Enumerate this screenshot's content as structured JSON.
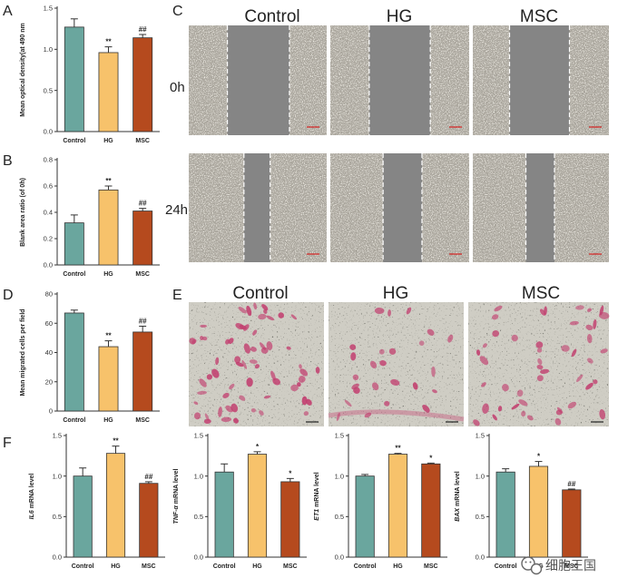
{
  "colors": {
    "Control": "#6aa69e",
    "HG": "#f7c26b",
    "MSC": "#b54a1e",
    "bar_edge": "#333333",
    "scratch_field": "#858585",
    "transwell_bg": "#cfcdc4",
    "stain": "#c23d6e"
  },
  "panels": {
    "A": "A",
    "B": "B",
    "C": "C",
    "D": "D",
    "E": "E",
    "F": "F"
  },
  "scratch": {
    "columns": [
      "Control",
      "HG",
      "MSC"
    ],
    "rows": [
      "0h",
      "24h"
    ]
  },
  "transwell": {
    "columns": [
      "Control",
      "HG",
      "MSC"
    ]
  },
  "watermark": {
    "text": "细胞王国",
    "icon": "wechat-icon"
  },
  "chart_data": [
    {
      "id": "A",
      "type": "bar",
      "categories": [
        "Control",
        "HG",
        "MSC"
      ],
      "values": [
        1.27,
        0.96,
        1.14
      ],
      "errors": [
        0.1,
        0.07,
        0.04
      ],
      "significance": [
        "",
        "**",
        "##"
      ],
      "ylabel": "Mean optical density(at 490 nm",
      "ylim": [
        0,
        1.5
      ],
      "yticks": [
        "0.0",
        "0.5",
        "1.0",
        "1.5"
      ],
      "ytick_values": [
        0,
        0.5,
        1.0,
        1.5
      ]
    },
    {
      "id": "B",
      "type": "bar",
      "categories": [
        "Control",
        "HG",
        "MSC"
      ],
      "values": [
        0.32,
        0.57,
        0.41
      ],
      "errors": [
        0.06,
        0.03,
        0.02
      ],
      "significance": [
        "",
        "**",
        "##"
      ],
      "ylabel": "Blank area ratio (of 0h)",
      "ylim": [
        0,
        0.8
      ],
      "yticks": [
        "0.0",
        "0.2",
        "0.4",
        "0.6",
        "0.8"
      ],
      "ytick_values": [
        0,
        0.2,
        0.4,
        0.6,
        0.8
      ]
    },
    {
      "id": "D",
      "type": "bar",
      "categories": [
        "Control",
        "HG",
        "MSC"
      ],
      "values": [
        67,
        44,
        54
      ],
      "errors": [
        2,
        4,
        4
      ],
      "significance": [
        "",
        "**",
        "##"
      ],
      "ylabel": "Mean migrated cells per field",
      "ylim": [
        0,
        80
      ],
      "yticks": [
        "0",
        "20",
        "40",
        "60",
        "80"
      ],
      "ytick_values": [
        0,
        20,
        40,
        60,
        80
      ]
    },
    {
      "id": "F1",
      "type": "bar",
      "categories": [
        "Control",
        "HG",
        "MSC"
      ],
      "values": [
        1.0,
        1.28,
        0.91
      ],
      "errors": [
        0.1,
        0.09,
        0.02
      ],
      "significance": [
        "",
        "**",
        "##"
      ],
      "ylabel_italic": "IL6",
      "ylabel_rest": " mRNA level",
      "ylim": [
        0,
        1.5
      ],
      "yticks": [
        "0.0",
        "0.5",
        "1.0",
        "1.5"
      ],
      "ytick_values": [
        0,
        0.5,
        1.0,
        1.5
      ]
    },
    {
      "id": "F2",
      "type": "bar",
      "categories": [
        "Control",
        "HG",
        "MSC"
      ],
      "values": [
        1.05,
        1.27,
        0.93
      ],
      "errors": [
        0.1,
        0.03,
        0.04
      ],
      "significance": [
        "",
        "*",
        "*"
      ],
      "ylabel_italic": "TNF-α",
      "ylabel_rest": " mRNA level",
      "ylim": [
        0,
        1.5
      ],
      "yticks": [
        "0.0",
        "0.5",
        "1.0",
        "1.5"
      ],
      "ytick_values": [
        0,
        0.5,
        1.0,
        1.5
      ]
    },
    {
      "id": "F3",
      "type": "bar",
      "categories": [
        "Control",
        "HG",
        "MSC"
      ],
      "values": [
        1.0,
        1.27,
        1.15
      ],
      "errors": [
        0.02,
        0.01,
        0.01
      ],
      "significance": [
        "",
        "**",
        "*"
      ],
      "ylabel_italic": "ET1",
      "ylabel_rest": " mRNA level",
      "ylim": [
        0,
        1.5
      ],
      "yticks": [
        "0.0",
        "0.5",
        "1.0",
        "1.5"
      ],
      "ytick_values": [
        0,
        0.5,
        1.0,
        1.5
      ]
    },
    {
      "id": "F4",
      "type": "bar",
      "categories": [
        "Control",
        "HG",
        "MSC"
      ],
      "values": [
        1.05,
        1.12,
        0.83
      ],
      "errors": [
        0.04,
        0.06,
        0.01
      ],
      "significance": [
        "",
        "*",
        "##"
      ],
      "ylabel_italic": "BAX",
      "ylabel_rest": " mRNA level",
      "ylim": [
        0,
        1.5
      ],
      "yticks": [
        "0.0",
        "0.5",
        "1.0",
        "1.5"
      ],
      "ytick_values": [
        0,
        0.5,
        1.0,
        1.5
      ]
    }
  ]
}
